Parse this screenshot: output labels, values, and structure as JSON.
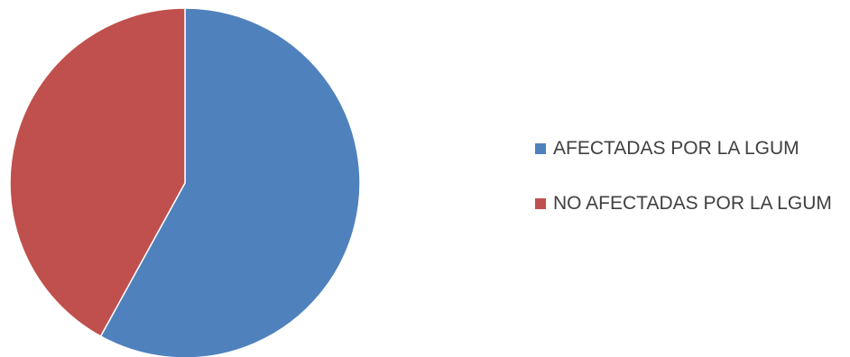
{
  "chart_data": {
    "type": "pie",
    "title": "",
    "categories": [
      "AFECTADAS POR LA LGUM",
      "NO AFECTADAS POR LA LGUM"
    ],
    "values": [
      58,
      42
    ],
    "colors": [
      "#4F81BD",
      "#C0504D"
    ],
    "legend": "right"
  }
}
